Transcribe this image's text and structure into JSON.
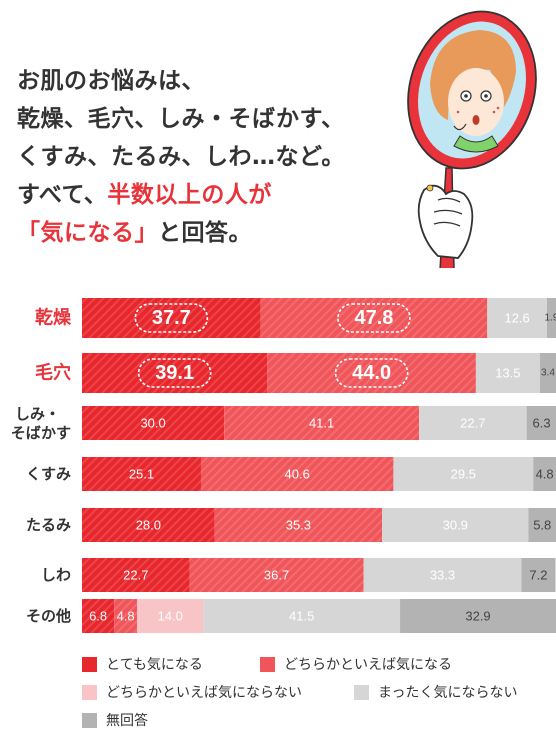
{
  "headline": {
    "line1": "お肌のお悩みは、",
    "line2": "乾燥、毛穴、しみ・そばかす、",
    "line3": "くすみ、たるみ、しわ…など。",
    "line4_pre": "すべて、",
    "line4_highlight": "半数以上の人が",
    "line5_highlight": "「気になる」",
    "line5_post": "と回答。"
  },
  "colors": {
    "highlight_text": "#e8333a",
    "very_concerned": "#e8272d",
    "somewhat_concerned": "#f0555a",
    "somewhat_not": "#f9c4c6",
    "not_at_all": "#d6d6d6",
    "no_answer": "#b3b3b3"
  },
  "illustration": {
    "subject": "hand holding a red hand mirror reflecting a surprised woman checking her skin",
    "icon": "hand-mirror-icon"
  },
  "chart_data": {
    "type": "bar",
    "orientation": "horizontal",
    "stacked": true,
    "normalized_to_100": true,
    "categories": [
      "乾燥",
      "毛穴",
      "しみ・そばかす",
      "くすみ",
      "たるみ",
      "しわ",
      "その他"
    ],
    "highlighted_categories": [
      "乾燥",
      "毛穴"
    ],
    "series": [
      {
        "name": "とても気になる",
        "color": "#e8272d",
        "values": [
          37.7,
          39.1,
          30.0,
          25.1,
          28.0,
          22.7,
          6.8
        ]
      },
      {
        "name": "どちらかといえば気になる",
        "color": "#f0555a",
        "values": [
          47.8,
          44.0,
          41.1,
          40.6,
          35.3,
          36.7,
          4.8
        ]
      },
      {
        "name": "どちらかといえば気にならない",
        "color": "#f9c4c6",
        "values": [
          0,
          0,
          0,
          0,
          0,
          0,
          14.0
        ]
      },
      {
        "name": "まったく気にならない",
        "color": "#d6d6d6",
        "values": [
          12.6,
          13.5,
          22.7,
          29.5,
          30.9,
          33.3,
          41.5
        ]
      },
      {
        "name": "無回答",
        "color": "#b3b3b3",
        "values": [
          1.9,
          3.4,
          6.3,
          4.8,
          5.8,
          7.2,
          32.9
        ]
      }
    ],
    "labels": [
      [
        "37.7",
        "47.8",
        "",
        "12.6",
        "1.9"
      ],
      [
        "39.1",
        "44.0",
        "",
        "13.5",
        "3.4"
      ],
      [
        "30.0",
        "41.1",
        "",
        "22.7",
        "6.3"
      ],
      [
        "25.1",
        "40.6",
        "",
        "29.5",
        "4.8"
      ],
      [
        "28.0",
        "35.3",
        "",
        "30.9",
        "5.8"
      ],
      [
        "22.7",
        "36.7",
        "",
        "33.3",
        "7.2"
      ],
      [
        "6.8",
        "4.8",
        "14.0",
        "41.5",
        "32.9"
      ]
    ],
    "legend_position": "bottom",
    "grid": false
  }
}
